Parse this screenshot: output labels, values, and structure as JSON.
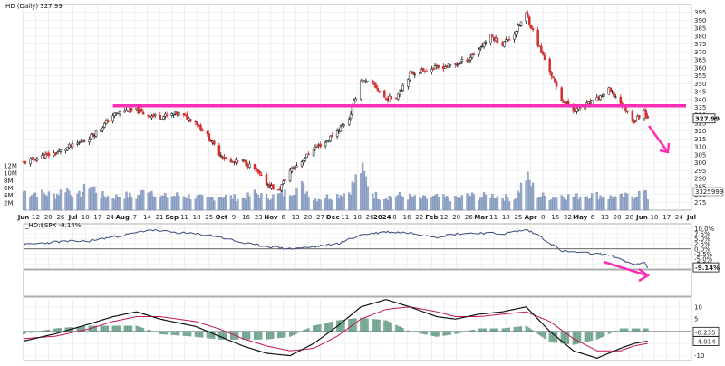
{
  "chart_data": [
    {
      "type": "candlestick",
      "panel": "price",
      "title": "HD (Daily) 327.99",
      "ylim": [
        270,
        400
      ],
      "y_ticks": [
        275,
        280,
        285,
        290,
        295,
        300,
        305,
        310,
        315,
        320,
        325,
        330,
        335,
        340,
        345,
        350,
        355,
        360,
        365,
        370,
        375,
        380,
        385,
        390,
        395
      ],
      "last_price_label": "327.99",
      "volume_axis_labels": [
        "2M",
        "4M",
        "6M",
        "8M",
        "10M",
        "12M"
      ],
      "volume_last_label": "3325999",
      "x_tick_labels": [
        "Jun",
        "12",
        "20",
        "26",
        "Jul",
        "10",
        "17",
        "24",
        "Aug",
        "7",
        "14",
        "21",
        "Sep",
        "11",
        "18",
        "25",
        "Oct",
        "9",
        "16",
        "23",
        "Nov",
        "6",
        "13",
        "20",
        "27",
        "Dec",
        "11",
        "18",
        "26",
        "2024",
        "8",
        "16",
        "22",
        "Feb",
        "12",
        "20",
        "26",
        "Mar",
        "11",
        "18",
        "25",
        "Apr",
        "8",
        "15",
        "22",
        "May",
        "6",
        "13",
        "20",
        "28",
        "Jun",
        "10",
        "17",
        "24",
        "Jul"
      ],
      "resistance_level": 336,
      "annotation_arrows": [
        "down-arrow"
      ],
      "close_path": [
        [
          "2023-06-01",
          300
        ],
        [
          "2023-06-12",
          304
        ],
        [
          "2023-06-20",
          306
        ],
        [
          "2023-06-26",
          309
        ],
        [
          "2023-07-03",
          312
        ],
        [
          "2023-07-10",
          316
        ],
        [
          "2023-07-17",
          322
        ],
        [
          "2023-07-24",
          330
        ],
        [
          "2023-07-31",
          333
        ],
        [
          "2023-08-07",
          333
        ],
        [
          "2023-08-14",
          330
        ],
        [
          "2023-08-21",
          329
        ],
        [
          "2023-09-01",
          331
        ],
        [
          "2023-09-11",
          326
        ],
        [
          "2023-09-18",
          317
        ],
        [
          "2023-09-25",
          306
        ],
        [
          "2023-10-02",
          300
        ],
        [
          "2023-10-09",
          301
        ],
        [
          "2023-10-16",
          296
        ],
        [
          "2023-10-23",
          287
        ],
        [
          "2023-10-30",
          282
        ],
        [
          "2023-11-06",
          295
        ],
        [
          "2023-11-13",
          301
        ],
        [
          "2023-11-20",
          309
        ],
        [
          "2023-11-27",
          313
        ],
        [
          "2023-12-04",
          320
        ],
        [
          "2023-12-11",
          328
        ],
        [
          "2023-12-18",
          352
        ],
        [
          "2023-12-26",
          349
        ],
        [
          "2024-01-02",
          340
        ],
        [
          "2024-01-08",
          342
        ],
        [
          "2024-01-16",
          356
        ],
        [
          "2024-01-22",
          358
        ],
        [
          "2024-02-01",
          360
        ],
        [
          "2024-02-12",
          362
        ],
        [
          "2024-02-20",
          366
        ],
        [
          "2024-02-26",
          372
        ],
        [
          "2024-03-04",
          380
        ],
        [
          "2024-03-11",
          375
        ],
        [
          "2024-03-18",
          382
        ],
        [
          "2024-03-25",
          394
        ],
        [
          "2024-04-01",
          375
        ],
        [
          "2024-04-08",
          358
        ],
        [
          "2024-04-15",
          340
        ],
        [
          "2024-04-22",
          333
        ],
        [
          "2024-04-29",
          336
        ],
        [
          "2024-05-06",
          340
        ],
        [
          "2024-05-13",
          346
        ],
        [
          "2024-05-20",
          338
        ],
        [
          "2024-05-28",
          326
        ],
        [
          "2024-06-03",
          333
        ],
        [
          "2024-06-05",
          328
        ]
      ],
      "volume_path": [
        [
          "2023-06-01",
          5
        ],
        [
          "2023-06-12",
          4.5
        ],
        [
          "2023-06-20",
          4
        ],
        [
          "2023-06-26",
          6
        ],
        [
          "2023-07-03",
          3.5
        ],
        [
          "2023-07-10",
          7
        ],
        [
          "2023-07-17",
          4
        ],
        [
          "2023-07-24",
          3.5
        ],
        [
          "2023-07-31",
          4
        ],
        [
          "2023-08-07",
          3.5
        ],
        [
          "2023-08-14",
          6
        ],
        [
          "2023-08-21",
          3.5
        ],
        [
          "2023-09-01",
          4
        ],
        [
          "2023-09-11",
          3.5
        ],
        [
          "2023-09-18",
          3
        ],
        [
          "2023-09-25",
          4
        ],
        [
          "2023-10-02",
          3.5
        ],
        [
          "2023-10-09",
          3
        ],
        [
          "2023-10-16",
          4.5
        ],
        [
          "2023-10-23",
          3.5
        ],
        [
          "2023-10-30",
          4
        ],
        [
          "2023-11-06",
          5
        ],
        [
          "2023-11-13",
          6.5
        ],
        [
          "2023-11-20",
          3
        ],
        [
          "2023-11-27",
          3.5
        ],
        [
          "2023-12-04",
          4
        ],
        [
          "2023-12-11",
          5
        ],
        [
          "2023-12-18",
          11
        ],
        [
          "2023-12-26",
          4
        ],
        [
          "2024-01-02",
          3.5
        ],
        [
          "2024-01-08",
          4
        ],
        [
          "2024-01-16",
          3.5
        ],
        [
          "2024-01-22",
          3
        ],
        [
          "2024-02-01",
          3.5
        ],
        [
          "2024-02-12",
          3
        ],
        [
          "2024-02-20",
          4
        ],
        [
          "2024-02-26",
          3.5
        ],
        [
          "2024-03-04",
          4
        ],
        [
          "2024-03-11",
          3.5
        ],
        [
          "2024-03-18",
          3
        ],
        [
          "2024-03-25",
          9
        ],
        [
          "2024-04-01",
          4
        ],
        [
          "2024-04-08",
          3.5
        ],
        [
          "2024-04-15",
          4
        ],
        [
          "2024-04-22",
          3.5
        ],
        [
          "2024-04-29",
          4
        ],
        [
          "2024-05-06",
          4
        ],
        [
          "2024-05-13",
          3.5
        ],
        [
          "2024-05-20",
          3.5
        ],
        [
          "2024-05-28",
          4
        ],
        [
          "2024-06-03",
          5
        ],
        [
          "2024-06-05",
          3.3
        ]
      ]
    },
    {
      "type": "line",
      "panel": "relative-strength",
      "title": "_HD:$SPX -9.14%",
      "ylim": [
        -10,
        12.5
      ],
      "y_ticks": [
        "10.0%",
        "7.5%",
        "5.0%",
        "2.5%",
        "0.0%",
        "-2.5%",
        "-5.0%",
        "-7.5%"
      ],
      "zero_line": 0,
      "last_value_label": "-9.14%",
      "annotation_arrows": [
        "right-down-arrow"
      ],
      "series": [
        {
          "values": [
            [
              "2023-06-01",
              2
            ],
            [
              "2023-06-20",
              3.5
            ],
            [
              "2023-07-10",
              4
            ],
            [
              "2023-07-24",
              6
            ],
            [
              "2023-08-07",
              8
            ],
            [
              "2023-08-14",
              9.5
            ],
            [
              "2023-09-01",
              8
            ],
            [
              "2023-09-18",
              7
            ],
            [
              "2023-09-25",
              6
            ],
            [
              "2023-10-09",
              3
            ],
            [
              "2023-10-16",
              2
            ],
            [
              "2023-11-06",
              0
            ],
            [
              "2023-11-20",
              1
            ],
            [
              "2023-12-04",
              2.5
            ],
            [
              "2023-12-18",
              7
            ],
            [
              "2024-01-02",
              8.5
            ],
            [
              "2024-01-16",
              8
            ],
            [
              "2024-02-01",
              6
            ],
            [
              "2024-02-12",
              7.5
            ],
            [
              "2024-02-26",
              8
            ],
            [
              "2024-03-11",
              7.5
            ],
            [
              "2024-03-25",
              9.5
            ],
            [
              "2024-04-01",
              7
            ],
            [
              "2024-04-08",
              3
            ],
            [
              "2024-04-15",
              -1
            ],
            [
              "2024-04-29",
              -2
            ],
            [
              "2024-05-13",
              -3
            ],
            [
              "2024-05-20",
              -5
            ],
            [
              "2024-05-28",
              -8
            ],
            [
              "2024-06-03",
              -7
            ],
            [
              "2024-06-05",
              -9.14
            ]
          ]
        }
      ]
    },
    {
      "type": "line",
      "panel": "macd",
      "ylim": [
        -12,
        14
      ],
      "y_ticks": [
        "10",
        "5",
        "0",
        "-5",
        "-10"
      ],
      "value_labels": [
        "-0.235",
        "-4.014"
      ],
      "series": [
        {
          "name": "macd",
          "color": "#111111",
          "values": [
            [
              "2023-06-01",
              -4
            ],
            [
              "2023-06-20",
              -1
            ],
            [
              "2023-07-10",
              3
            ],
            [
              "2023-07-24",
              6
            ],
            [
              "2023-08-07",
              8
            ],
            [
              "2023-08-21",
              5
            ],
            [
              "2023-09-11",
              2
            ],
            [
              "2023-09-25",
              -2
            ],
            [
              "2023-10-09",
              -6
            ],
            [
              "2023-10-23",
              -9
            ],
            [
              "2023-11-06",
              -10
            ],
            [
              "2023-11-20",
              -5
            ],
            [
              "2023-12-04",
              2
            ],
            [
              "2023-12-18",
              10
            ],
            [
              "2024-01-02",
              13
            ],
            [
              "2024-01-16",
              10
            ],
            [
              "2024-02-01",
              6
            ],
            [
              "2024-02-12",
              5
            ],
            [
              "2024-02-26",
              7
            ],
            [
              "2024-03-11",
              8
            ],
            [
              "2024-03-25",
              10
            ],
            [
              "2024-04-08",
              0
            ],
            [
              "2024-04-22",
              -8
            ],
            [
              "2024-05-06",
              -11
            ],
            [
              "2024-05-20",
              -7
            ],
            [
              "2024-05-28",
              -5
            ],
            [
              "2024-06-05",
              -4
            ]
          ]
        },
        {
          "name": "signal",
          "color": "#c2185b",
          "values": [
            [
              "2023-06-01",
              -3
            ],
            [
              "2023-06-20",
              -2
            ],
            [
              "2023-07-10",
              1
            ],
            [
              "2023-07-24",
              4
            ],
            [
              "2023-08-07",
              6
            ],
            [
              "2023-08-21",
              6
            ],
            [
              "2023-09-11",
              4
            ],
            [
              "2023-09-25",
              1
            ],
            [
              "2023-10-09",
              -3
            ],
            [
              "2023-10-23",
              -6
            ],
            [
              "2023-11-06",
              -8
            ],
            [
              "2023-11-20",
              -7
            ],
            [
              "2023-12-04",
              -2
            ],
            [
              "2023-12-18",
              5
            ],
            [
              "2024-01-02",
              9
            ],
            [
              "2024-01-16",
              10
            ],
            [
              "2024-02-01",
              8
            ],
            [
              "2024-02-12",
              6
            ],
            [
              "2024-02-26",
              6
            ],
            [
              "2024-03-11",
              7
            ],
            [
              "2024-03-25",
              8
            ],
            [
              "2024-04-08",
              4
            ],
            [
              "2024-04-22",
              -3
            ],
            [
              "2024-05-06",
              -8
            ],
            [
              "2024-05-20",
              -8
            ],
            [
              "2024-05-28",
              -6
            ],
            [
              "2024-06-05",
              -5
            ]
          ]
        }
      ]
    }
  ]
}
